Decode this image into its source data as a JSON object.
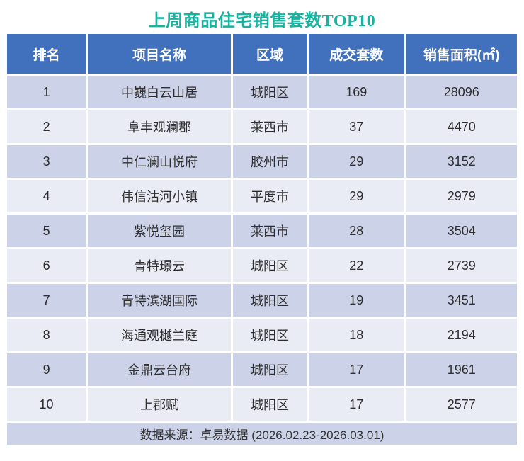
{
  "title": {
    "text": "上周商品住宅销售套数TOP10"
  },
  "table": {
    "columns": [
      {
        "key": "rank",
        "label": "排名"
      },
      {
        "key": "project",
        "label": "项目名称"
      },
      {
        "key": "district",
        "label": "区域"
      },
      {
        "key": "units_sold",
        "label": "成交套数"
      },
      {
        "key": "sales_area",
        "label": "销售面积(㎡)"
      }
    ],
    "rows": [
      {
        "rank": "1",
        "project": "中巍白云山居",
        "district": "城阳区",
        "units_sold": "169",
        "sales_area": "28096"
      },
      {
        "rank": "2",
        "project": "阜丰观澜郡",
        "district": "莱西市",
        "units_sold": "37",
        "sales_area": "4470"
      },
      {
        "rank": "3",
        "project": "中仁澜山悦府",
        "district": "胶州市",
        "units_sold": "29",
        "sales_area": "3152"
      },
      {
        "rank": "4",
        "project": "伟信沽河小镇",
        "district": "平度市",
        "units_sold": "29",
        "sales_area": "2979"
      },
      {
        "rank": "5",
        "project": "紫悦玺园",
        "district": "莱西市",
        "units_sold": "28",
        "sales_area": "3504"
      },
      {
        "rank": "6",
        "project": "青特璟云",
        "district": "城阳区",
        "units_sold": "22",
        "sales_area": "2739"
      },
      {
        "rank": "7",
        "project": "青特滨湖国际",
        "district": "城阳区",
        "units_sold": "19",
        "sales_area": "3451"
      },
      {
        "rank": "8",
        "project": "海通观樾兰庭",
        "district": "城阳区",
        "units_sold": "18",
        "sales_area": "2194"
      },
      {
        "rank": "9",
        "project": "金鼎云台府",
        "district": "城阳区",
        "units_sold": "17",
        "sales_area": "1961"
      },
      {
        "rank": "10",
        "project": "上郡赋",
        "district": "城阳区",
        "units_sold": "17",
        "sales_area": "2577"
      }
    ]
  },
  "footer": {
    "text": "数据来源：卓易数据 (2026.02.23-2026.03.01)"
  },
  "colors": {
    "header_bg": "#4170bd",
    "row_dark": "#ccd3e8",
    "row_light": "#e9ebf5",
    "footer_bg": "#ccd3e8",
    "title_color": "#16b4a0",
    "header_text": "#ffffff",
    "body_text": "#2e2e2e",
    "page_bg": "#ffffff"
  },
  "chart_data": {
    "type": "table",
    "title": "上周商品住宅销售套数TOP10",
    "columns": [
      "排名",
      "项目名称",
      "区域",
      "成交套数",
      "销售面积(㎡)"
    ],
    "rows": [
      [
        1,
        "中巍白云山居",
        "城阳区",
        169,
        28096
      ],
      [
        2,
        "阜丰观澜郡",
        "莱西市",
        37,
        4470
      ],
      [
        3,
        "中仁澜山悦府",
        "胶州市",
        29,
        3152
      ],
      [
        4,
        "伟信沽河小镇",
        "平度市",
        29,
        2979
      ],
      [
        5,
        "紫悦玺园",
        "莱西市",
        28,
        3504
      ],
      [
        6,
        "青特璟云",
        "城阳区",
        22,
        2739
      ],
      [
        7,
        "青特滨湖国际",
        "城阳区",
        19,
        3451
      ],
      [
        8,
        "海通观樾兰庭",
        "城阳区",
        18,
        2194
      ],
      [
        9,
        "金鼎云台府",
        "城阳区",
        17,
        1961
      ],
      [
        10,
        "上郡赋",
        "城阳区",
        17,
        2577
      ]
    ],
    "source_note": "数据来源：卓易数据 (2026.02.23-2026.03.01)",
    "layout": {
      "banded_rows": true,
      "header_style": "solid-blue",
      "grid": "white-gaps"
    }
  }
}
